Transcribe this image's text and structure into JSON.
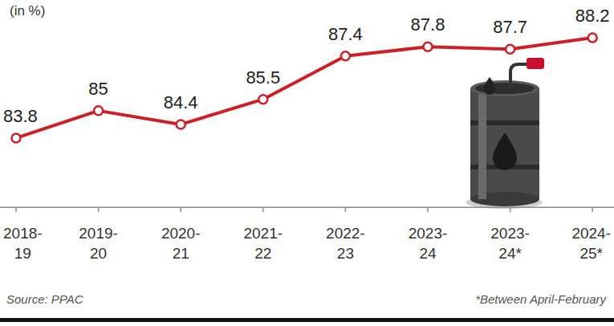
{
  "chart_data": {
    "type": "line",
    "y_label": "(in %)",
    "categories": [
      "2018-19",
      "2019-20",
      "2020-21",
      "2021-22",
      "2022-23",
      "2023-24",
      "2023-24*",
      "2024-25*"
    ],
    "values": [
      83.8,
      85,
      84.4,
      85.5,
      87.4,
      87.8,
      87.7,
      88.2
    ],
    "color": "#cc1f26",
    "marker": "circle",
    "data_labels": true,
    "ylim": [
      80.8,
      89.8
    ],
    "tick_labels": "x",
    "grid": false,
    "source": "Source: PPAC",
    "note": "*Between April-February"
  }
}
